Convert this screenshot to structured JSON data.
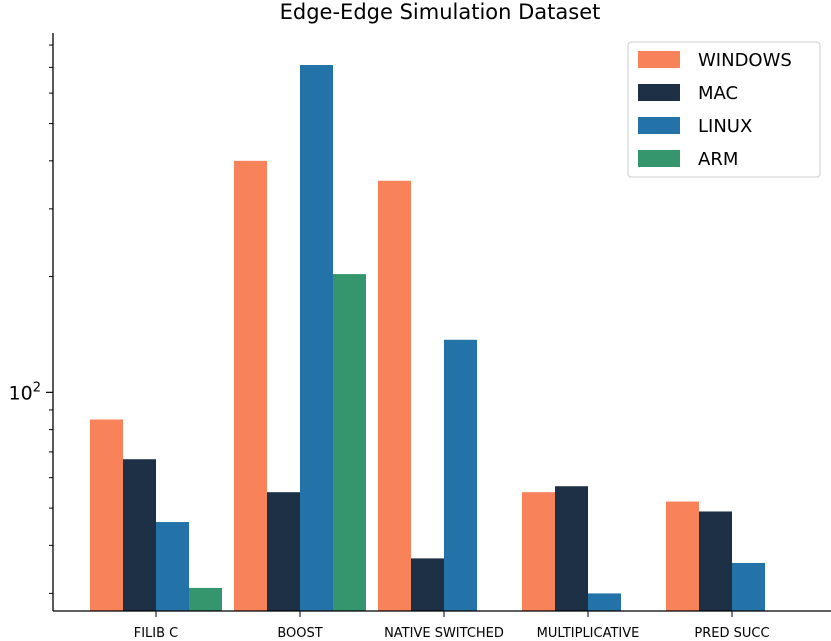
{
  "chart_data": {
    "type": "bar",
    "title": "Edge-Edge Simulation Dataset",
    "xlabel": "",
    "ylabel": "",
    "yscale": "log",
    "ylim": [
      27,
      860
    ],
    "y_tick_base": "10",
    "y_tick_exponent": "2",
    "categories": [
      "FILIB C",
      "BOOST",
      "NATIVE SWITCHED",
      "MULTIPLICATIVE",
      "PRED SUCC"
    ],
    "series": [
      {
        "name": "WINDOWS",
        "color": "#f8825a",
        "values": [
          85,
          400,
          355,
          55,
          52
        ]
      },
      {
        "name": "MAC",
        "color": "#1e3046",
        "values": [
          67,
          55,
          37,
          57,
          49
        ]
      },
      {
        "name": "LINUX",
        "color": "#2473a8",
        "values": [
          46,
          710,
          137,
          30,
          36
        ]
      },
      {
        "name": "ARM",
        "color": "#35966d",
        "values": [
          31,
          203,
          null,
          null,
          null
        ]
      }
    ],
    "legend_position": "top-right",
    "grid": false
  }
}
